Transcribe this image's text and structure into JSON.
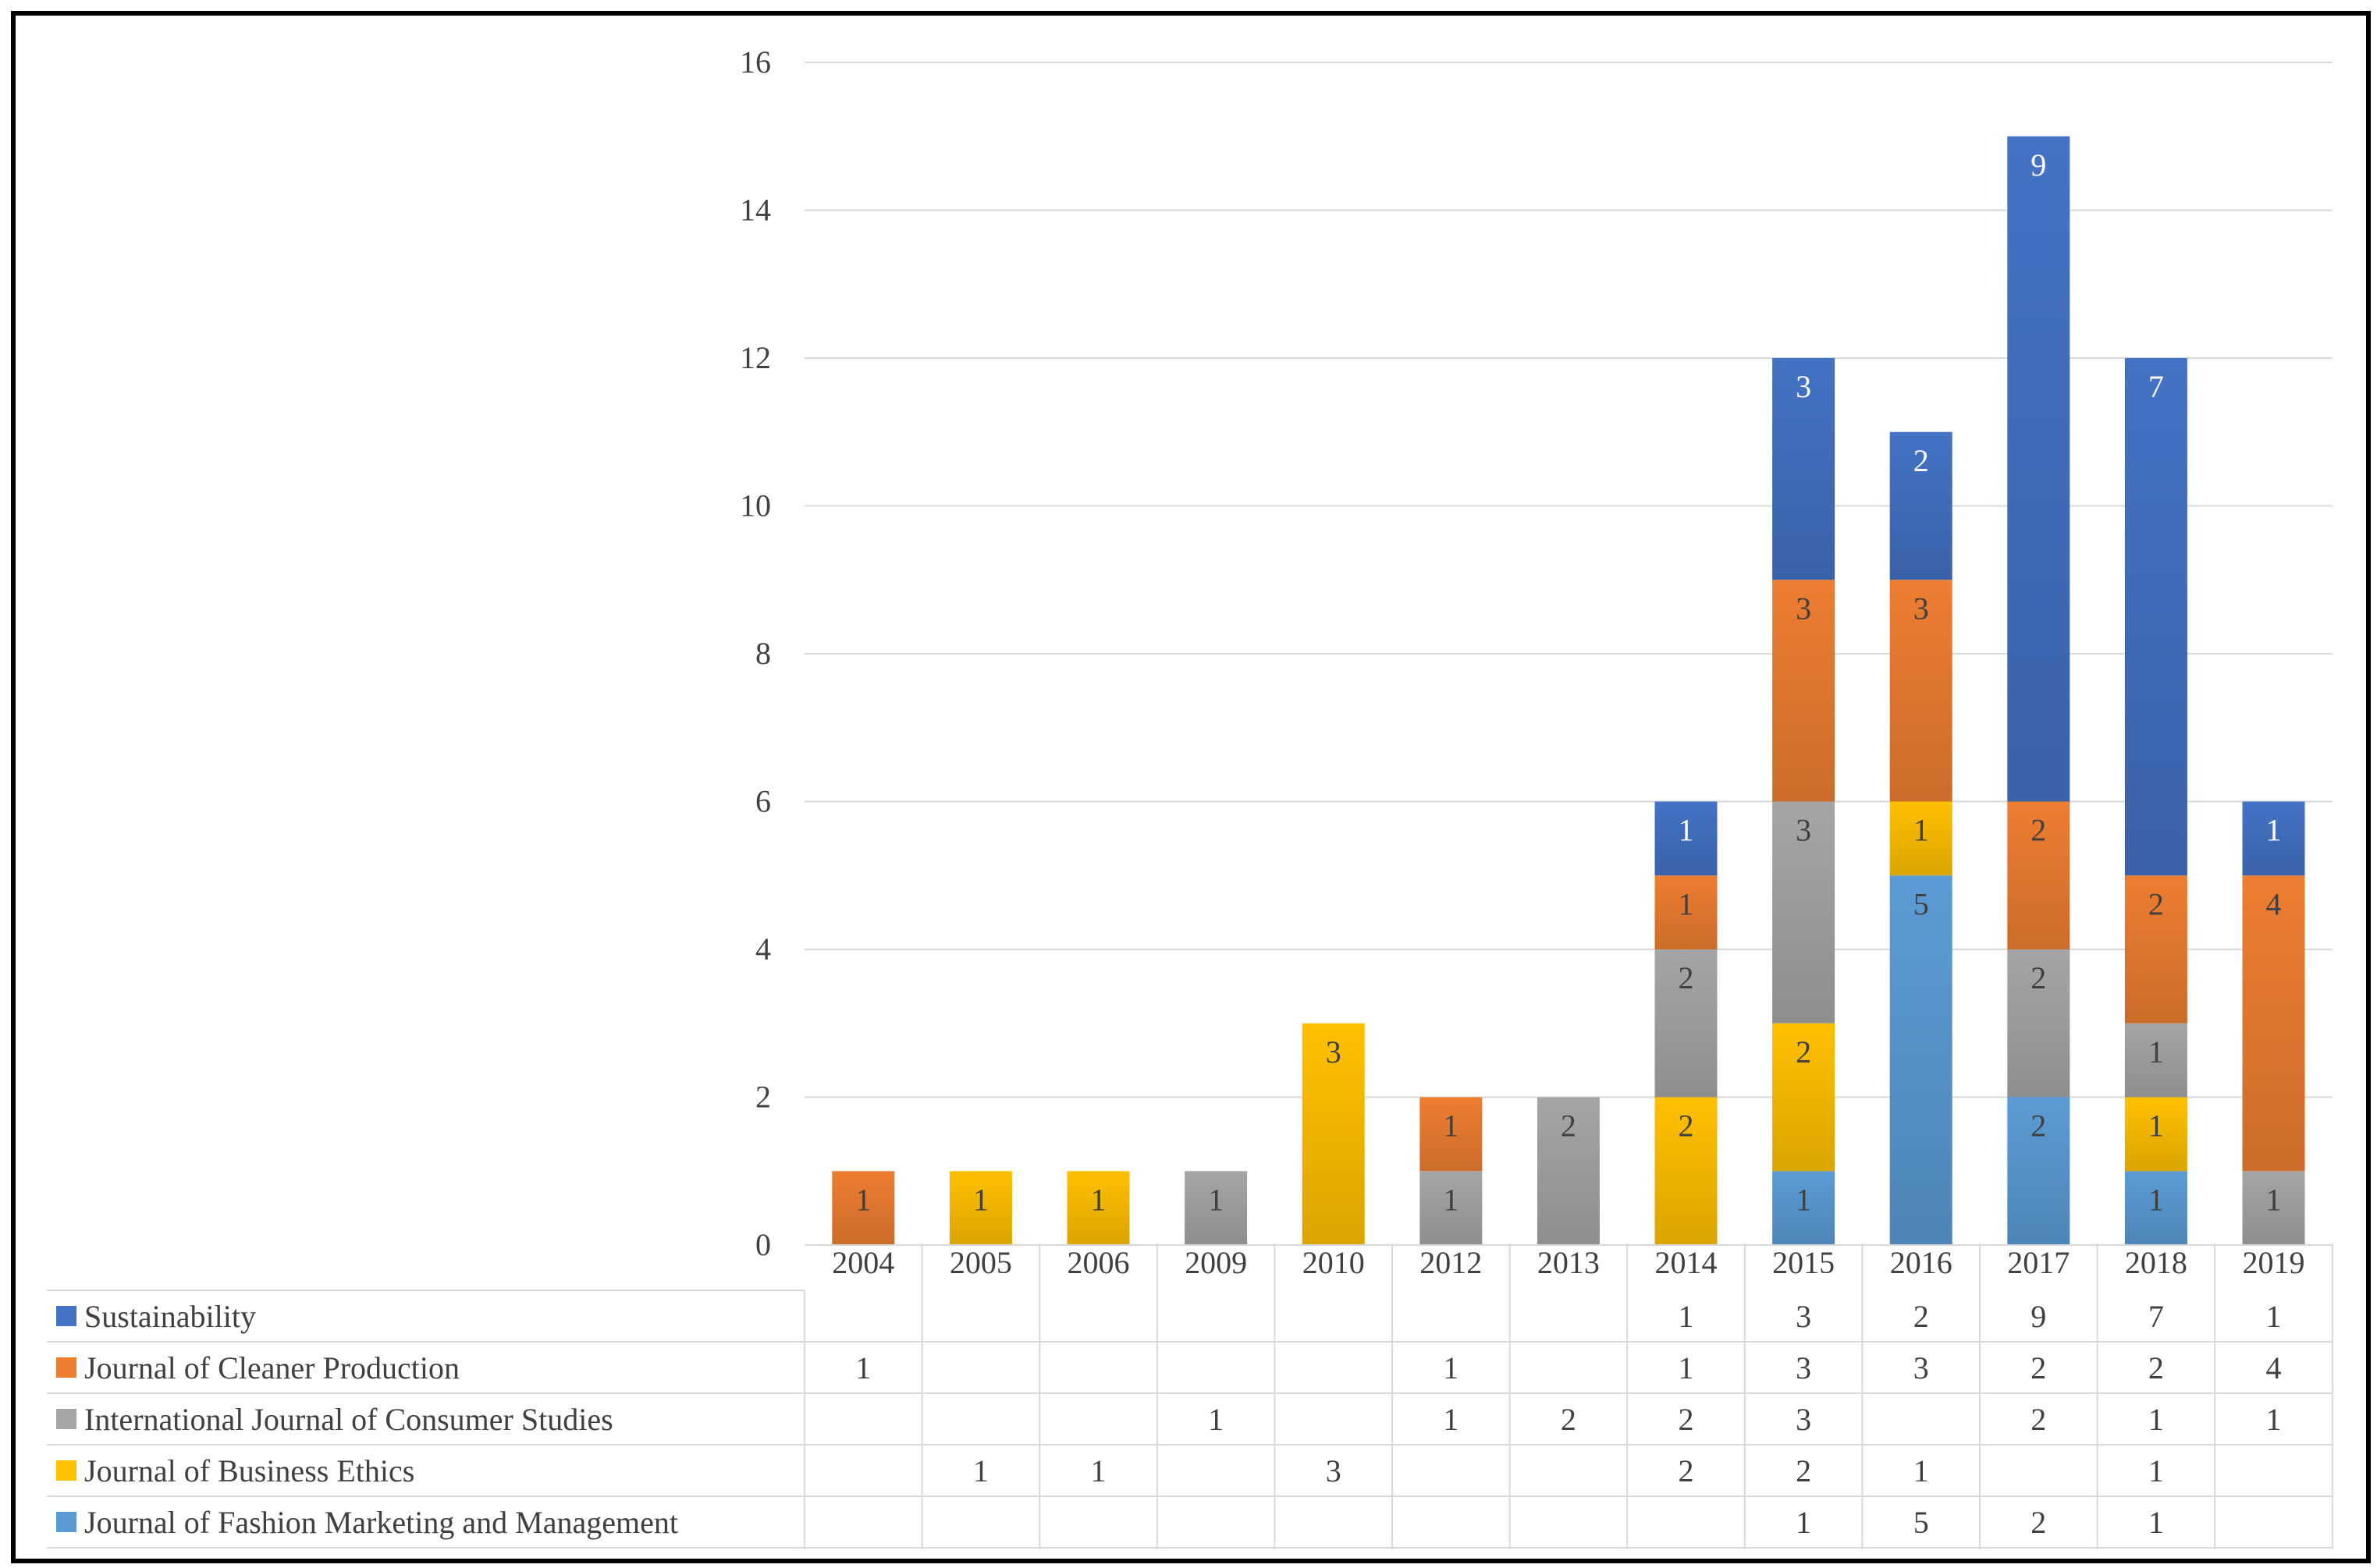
{
  "chart_data": {
    "type": "bar",
    "stacked": true,
    "title": "",
    "xlabel": "",
    "ylabel": "",
    "ylim": [
      0,
      16
    ],
    "yticks": [
      0,
      2,
      4,
      6,
      8,
      10,
      12,
      14,
      16
    ],
    "grid": true,
    "categories": [
      "2004",
      "2005",
      "2006",
      "2009",
      "2010",
      "2012",
      "2013",
      "2014",
      "2015",
      "2016",
      "2017",
      "2018",
      "2019"
    ],
    "series": [
      {
        "name": "Journal of Fashion Marketing and Management",
        "color": "#5B9BD5",
        "values": [
          null,
          null,
          null,
          null,
          null,
          null,
          null,
          null,
          1,
          5,
          2,
          1,
          null
        ]
      },
      {
        "name": "Journal of Business Ethics",
        "color": "#FFC000",
        "values": [
          null,
          1,
          1,
          null,
          3,
          null,
          null,
          2,
          2,
          1,
          null,
          1,
          null
        ]
      },
      {
        "name": "International Journal of Consumer Studies",
        "color": "#A5A5A5",
        "values": [
          null,
          null,
          null,
          1,
          null,
          1,
          2,
          2,
          3,
          null,
          2,
          1,
          1
        ]
      },
      {
        "name": "Journal of Cleaner Production",
        "color": "#ED7D31",
        "values": [
          1,
          null,
          null,
          null,
          null,
          1,
          null,
          1,
          3,
          3,
          2,
          2,
          4
        ]
      },
      {
        "name": "Sustainability",
        "color": "#4472C4",
        "values": [
          null,
          null,
          null,
          null,
          null,
          null,
          null,
          1,
          3,
          2,
          9,
          7,
          1
        ]
      }
    ],
    "legend_position": "data-table-left",
    "data_table_rows_order": [
      "Sustainability",
      "Journal of Cleaner Production",
      "International Journal of Consumer Studies",
      "Journal of Business Ethics",
      "Journal of Fashion Marketing and Management"
    ]
  }
}
